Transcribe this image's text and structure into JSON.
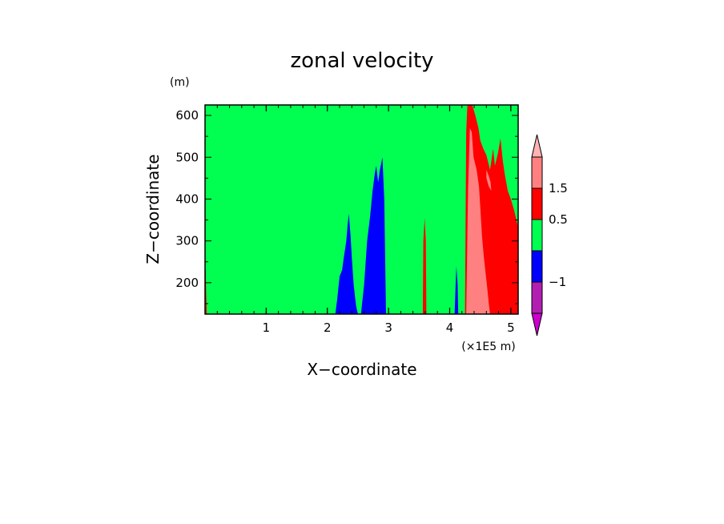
{
  "chart_data": {
    "type": "heatmap",
    "title": "zonal velocity",
    "xlabel": "X−coordinate",
    "ylabel": "Z−coordinate",
    "x_unit": "(×1E5 m)",
    "y_unit": "(m)",
    "xlim": [
      0,
      5.12
    ],
    "ylim": [
      125,
      625
    ],
    "x_ticks": [
      {
        "v": 1,
        "label": "1"
      },
      {
        "v": 2,
        "label": "2"
      },
      {
        "v": 3,
        "label": "3"
      },
      {
        "v": 4,
        "label": "4"
      },
      {
        "v": 5,
        "label": "5"
      }
    ],
    "y_ticks": [
      {
        "v": 200,
        "label": "200"
      },
      {
        "v": 300,
        "label": "300"
      },
      {
        "v": 400,
        "label": "400"
      },
      {
        "v": 500,
        "label": "500"
      },
      {
        "v": 600,
        "label": "600"
      }
    ],
    "background_level": "green",
    "levels": {
      "magenta": "#b21eb2",
      "blue": "#0000ff",
      "green": "#00ff50",
      "red": "#ff0000",
      "pink": "#ff8080"
    },
    "colorbar": {
      "bins": [
        "magenta",
        "blue",
        "green",
        "red",
        "pink"
      ],
      "extend_low": "#cc00cc",
      "extend_high": "#ffb3b3",
      "labels": [
        {
          "bin_edge": 1,
          "label": "−1"
        },
        {
          "bin_edge": 3,
          "label": "0.5"
        },
        {
          "bin_edge": 4,
          "label": "1.5"
        }
      ]
    },
    "regions": [
      {
        "level": "red",
        "points": [
          [
            0,
            125
          ],
          [
            0.03,
            125
          ],
          [
            0.02,
            170
          ],
          [
            0.01,
            230
          ],
          [
            0,
            240
          ]
        ]
      },
      {
        "level": "blue",
        "points": [
          [
            2.13,
            125
          ],
          [
            2.16,
            160
          ],
          [
            2.2,
            215
          ],
          [
            2.24,
            230
          ],
          [
            2.27,
            262
          ],
          [
            2.31,
            300
          ],
          [
            2.33,
            335
          ],
          [
            2.35,
            365
          ],
          [
            2.38,
            310
          ],
          [
            2.4,
            260
          ],
          [
            2.43,
            195
          ],
          [
            2.47,
            145
          ],
          [
            2.5,
            125
          ]
        ]
      },
      {
        "level": "blue",
        "points": [
          [
            2.55,
            125
          ],
          [
            2.6,
            195
          ],
          [
            2.65,
            300
          ],
          [
            2.7,
            360
          ],
          [
            2.74,
            420
          ],
          [
            2.78,
            465
          ],
          [
            2.8,
            480
          ],
          [
            2.83,
            440
          ],
          [
            2.86,
            470
          ],
          [
            2.9,
            500
          ],
          [
            2.93,
            400
          ],
          [
            2.96,
            125
          ]
        ]
      },
      {
        "level": "red",
        "points": [
          [
            3.56,
            125
          ],
          [
            3.57,
            300
          ],
          [
            3.59,
            355
          ],
          [
            3.61,
            300
          ],
          [
            3.62,
            125
          ]
        ]
      },
      {
        "level": "blue",
        "points": [
          [
            4.08,
            125
          ],
          [
            4.1,
            205
          ],
          [
            4.11,
            240
          ],
          [
            4.13,
            195
          ],
          [
            4.14,
            125
          ]
        ]
      },
      {
        "level": "red",
        "points": [
          [
            4.25,
            125
          ],
          [
            4.27,
            560
          ],
          [
            4.29,
            625
          ],
          [
            4.37,
            625
          ],
          [
            4.42,
            600
          ],
          [
            4.47,
            570
          ],
          [
            4.5,
            540
          ],
          [
            4.55,
            520
          ],
          [
            4.6,
            505
          ],
          [
            4.66,
            470
          ],
          [
            4.71,
            520
          ],
          [
            4.74,
            480
          ],
          [
            4.79,
            510
          ],
          [
            4.83,
            545
          ],
          [
            4.87,
            490
          ],
          [
            4.9,
            460
          ],
          [
            4.95,
            420
          ],
          [
            5.0,
            400
          ],
          [
            5.05,
            375
          ],
          [
            5.1,
            345
          ],
          [
            5.12,
            330
          ],
          [
            5.12,
            125
          ]
        ]
      },
      {
        "level": "pink",
        "points": [
          [
            4.27,
            125
          ],
          [
            4.3,
            420
          ],
          [
            4.33,
            570
          ],
          [
            4.36,
            560
          ],
          [
            4.39,
            500
          ],
          [
            4.44,
            470
          ],
          [
            4.48,
            430
          ],
          [
            4.5,
            380
          ],
          [
            4.53,
            310
          ],
          [
            4.56,
            260
          ],
          [
            4.59,
            220
          ],
          [
            4.62,
            180
          ],
          [
            4.64,
            150
          ],
          [
            4.66,
            125
          ]
        ]
      },
      {
        "level": "pink",
        "points": [
          [
            4.6,
            470
          ],
          [
            4.64,
            455
          ],
          [
            4.67,
            440
          ],
          [
            4.68,
            420
          ],
          [
            4.64,
            430
          ],
          [
            4.6,
            450
          ]
        ]
      }
    ]
  }
}
